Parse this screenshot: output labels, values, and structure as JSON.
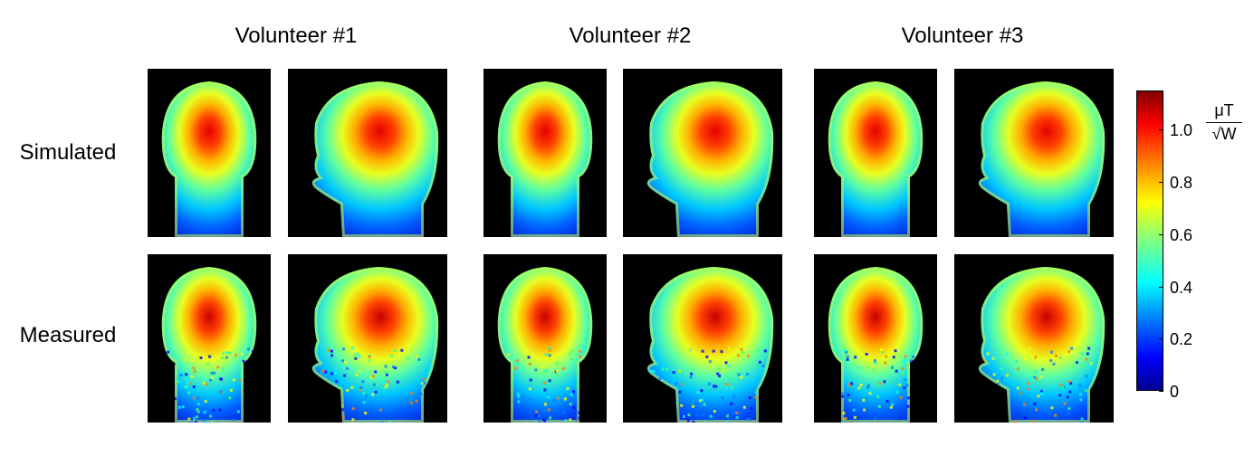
{
  "columns": [
    "Volunteer #1",
    "Volunteer #2",
    "Volunteer #3"
  ],
  "rows": [
    "Simulated",
    "Measured"
  ],
  "colorbar": {
    "ticks": [
      "0",
      "0.2",
      "0.4",
      "0.6",
      "0.8",
      "1.0"
    ],
    "unit_numerator": "μT",
    "unit_denominator": "√W",
    "colormap": "jet",
    "range": [
      0,
      1.15
    ]
  },
  "panels": [
    {
      "volunteer": 1,
      "row": "Simulated",
      "view": "coronal"
    },
    {
      "volunteer": 1,
      "row": "Simulated",
      "view": "sagittal"
    },
    {
      "volunteer": 2,
      "row": "Simulated",
      "view": "coronal"
    },
    {
      "volunteer": 2,
      "row": "Simulated",
      "view": "sagittal"
    },
    {
      "volunteer": 3,
      "row": "Simulated",
      "view": "coronal"
    },
    {
      "volunteer": 3,
      "row": "Simulated",
      "view": "sagittal"
    },
    {
      "volunteer": 1,
      "row": "Measured",
      "view": "coronal"
    },
    {
      "volunteer": 1,
      "row": "Measured",
      "view": "sagittal"
    },
    {
      "volunteer": 2,
      "row": "Measured",
      "view": "coronal"
    },
    {
      "volunteer": 2,
      "row": "Measured",
      "view": "sagittal"
    },
    {
      "volunteer": 3,
      "row": "Measured",
      "view": "coronal"
    },
    {
      "volunteer": 3,
      "row": "Measured",
      "view": "sagittal"
    }
  ]
}
